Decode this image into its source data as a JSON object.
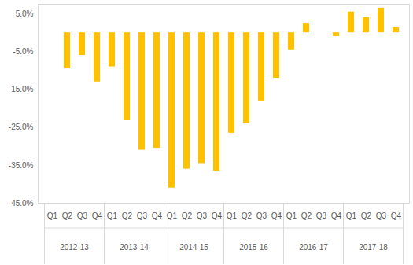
{
  "chart_data": {
    "type": "bar",
    "categories": [
      "Q1",
      "Q2",
      "Q3",
      "Q4",
      "Q1",
      "Q2",
      "Q3",
      "Q4",
      "Q1",
      "Q2",
      "Q3",
      "Q4",
      "Q1",
      "Q2",
      "Q3",
      "Q4",
      "Q1",
      "Q2",
      "Q3",
      "Q4",
      "Q1",
      "Q2",
      "Q3",
      "Q4"
    ],
    "groups": [
      "2012-13",
      "2013-14",
      "2014-15",
      "2015-16",
      "2016-17",
      "2017-18"
    ],
    "values": [
      0,
      -9.5,
      -6,
      -13,
      -9,
      -23,
      -31,
      -30.5,
      -41,
      -36,
      -34.5,
      -36.5,
      -26.5,
      -24,
      -18,
      -12,
      -4.5,
      2.5,
      0,
      -1,
      5.5,
      4,
      6.5,
      1.5
    ],
    "color": "#FFC000",
    "ylim": [
      -45,
      7.5
    ],
    "yticks": [
      {
        "value": -45,
        "label": "-45.0%"
      },
      {
        "value": -35,
        "label": "-35.0%"
      },
      {
        "value": -25,
        "label": "-25.0%"
      },
      {
        "value": -15,
        "label": "-15.0%"
      },
      {
        "value": -5,
        "label": "-5.0%"
      },
      {
        "value": 5,
        "label": "5.0%"
      }
    ],
    "grid": false
  }
}
